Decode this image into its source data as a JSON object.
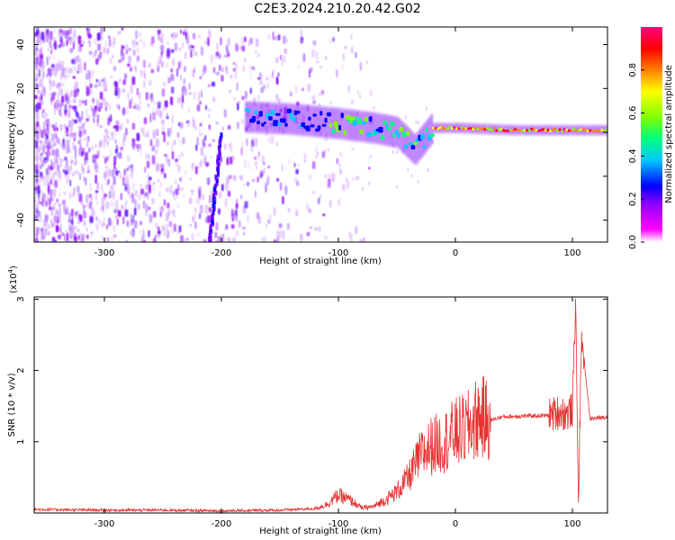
{
  "title": "C2E3.2024.210.20.42.G02",
  "chart_data": [
    {
      "type": "heatmap",
      "xlabel": "Height of straight line (km)",
      "ylabel": "Frequency (Hz)",
      "xlim": [
        -360,
        130
      ],
      "ylim": [
        -50,
        48
      ],
      "xticks": [
        "-300",
        "-200",
        "-100",
        "0",
        "100"
      ],
      "yticks": [
        "-40",
        "-20",
        "0",
        "20",
        "40"
      ],
      "colorbar": {
        "label": "Normalized spectral amplitude",
        "range": [
          0,
          1
        ],
        "ticks": [
          "0.0",
          "0.2",
          "0.4",
          "0.6",
          "0.8"
        ],
        "colormap": [
          "#ffffff",
          "#ff00ff",
          "#8a00ff",
          "#0000ff",
          "#00c8ff",
          "#00ff80",
          "#80ff00",
          "#ffff00",
          "#ff8000",
          "#ff0000",
          "#ff0080"
        ]
      },
      "features": [
        {
          "name": "noise-background",
          "x_range": [
            -360,
            -130
          ],
          "y_range": [
            -50,
            48
          ]
        },
        {
          "name": "main-signal-track",
          "points": [
            [
              -180,
              7
            ],
            [
              -140,
              6
            ],
            [
              -100,
              4
            ],
            [
              -70,
              2
            ],
            [
              -50,
              0
            ],
            [
              -35,
              -8
            ],
            [
              -20,
              2
            ],
            [
              0,
              2
            ],
            [
              50,
              1
            ],
            [
              100,
              1
            ],
            [
              130,
              1
            ]
          ]
        },
        {
          "name": "diagonal-streak",
          "points": [
            [
              -210,
              -50
            ],
            [
              -200,
              0
            ]
          ]
        }
      ]
    },
    {
      "type": "line",
      "xlabel": "Height of straight line (km)",
      "ylabel": "SNR (10 * v/v)",
      "exponent_label": "(x10",
      "exponent_power": "4",
      "exponent_close": ")",
      "xlim": [
        -360,
        130
      ],
      "ylim": [
        0,
        3.03
      ],
      "xticks": [
        "-300",
        "-200",
        "-100",
        "0",
        "100"
      ],
      "yticks": [
        "1",
        "2",
        "3"
      ],
      "color": "#e63232",
      "series": [
        {
          "x": [
            -360,
            -300,
            -250,
            -200,
            -150,
            -120,
            -110,
            -100,
            -90,
            -80,
            -70,
            -60,
            -50,
            -40,
            -30,
            -20,
            -10,
            0,
            10,
            20,
            30,
            40,
            60,
            80,
            90,
            95,
            100,
            103,
            105,
            108,
            115,
            130
          ],
          "y": [
            0.05,
            0.04,
            0.04,
            0.03,
            0.04,
            0.06,
            0.12,
            0.25,
            0.18,
            0.07,
            0.09,
            0.18,
            0.3,
            0.5,
            0.8,
            0.95,
            1.0,
            1.12,
            1.18,
            1.35,
            1.3,
            1.35,
            1.36,
            1.37,
            1.42,
            1.38,
            1.45,
            3.0,
            0.1,
            2.5,
            1.32,
            1.35
          ]
        }
      ]
    }
  ]
}
